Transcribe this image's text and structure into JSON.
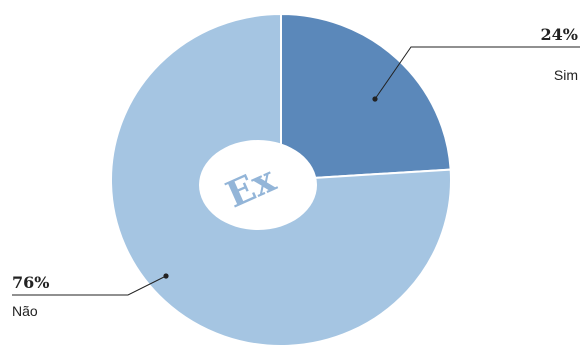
{
  "chart_data": {
    "type": "pie",
    "variant": "donut",
    "slices": [
      {
        "label": "Sim",
        "value": 24,
        "value_label": "24%",
        "color": "#5b88ba"
      },
      {
        "label": "Não",
        "value": 76,
        "value_label": "76%",
        "color": "#a5c5e2"
      }
    ],
    "center_logo": {
      "text": "Ex",
      "color": "#93b5d8"
    }
  }
}
